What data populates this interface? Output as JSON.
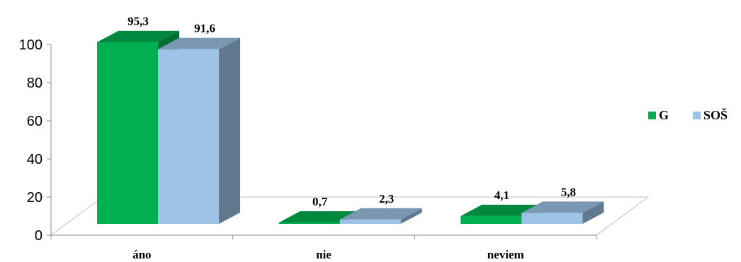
{
  "chart_data": {
    "type": "bar",
    "style": "3d-clustered",
    "categories": [
      "áno",
      "nie",
      "neviem"
    ],
    "series": [
      {
        "name": "G",
        "values": [
          95.3,
          0.7,
          4.1
        ],
        "value_labels": [
          "95,3",
          "0,7",
          "4,1"
        ],
        "color": "#00B050"
      },
      {
        "name": "SOŠ",
        "values": [
          91.6,
          2.3,
          5.8
        ],
        "value_labels": [
          "91,6",
          "2,3",
          "5,8"
        ],
        "color": "#9DC3E6"
      }
    ],
    "yticks": [
      "0",
      "20",
      "40",
      "60",
      "80",
      "100"
    ],
    "ylim": [
      0,
      100
    ],
    "grid": false,
    "legend_position": "right",
    "title": "",
    "xlabel": "",
    "ylabel": ""
  }
}
